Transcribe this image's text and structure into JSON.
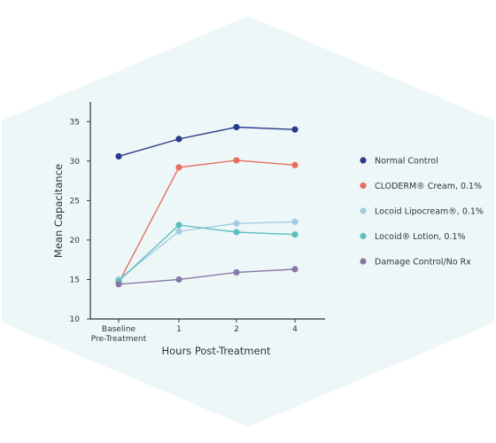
{
  "chart_data": {
    "type": "line",
    "title": "",
    "xlabel": "Hours Post-Treatment",
    "ylabel": "Mean Capacitance",
    "categories": [
      "Baseline\nPre-Treatment",
      "1",
      "2",
      "4"
    ],
    "yticks": [
      10,
      15,
      20,
      25,
      30,
      35
    ],
    "ylim": [
      10,
      37.5
    ],
    "grid": false,
    "legend_position": "right",
    "series": [
      {
        "name": "Normal Control",
        "values": [
          30.6,
          32.8,
          34.3,
          34.0
        ],
        "color": "#2b3a8c"
      },
      {
        "name": "CLODERM® Cream, 0.1%",
        "values": [
          14.6,
          29.2,
          30.1,
          29.5
        ],
        "color": "#e86d5f"
      },
      {
        "name": "Locoid Lipocream®, 0.1%",
        "values": [
          15.0,
          21.1,
          22.1,
          22.3
        ],
        "color": "#a2cbe3"
      },
      {
        "name": "Locoid® Lotion, 0.1%",
        "values": [
          14.8,
          21.9,
          21.0,
          20.7
        ],
        "color": "#5ebfbf"
      },
      {
        "name": "Damage Control/No Rx",
        "values": [
          14.4,
          15.0,
          15.9,
          16.3
        ],
        "color": "#8779a6"
      }
    ]
  },
  "colors": {
    "background_shape": "#eef7f7",
    "axis": "#333333"
  }
}
